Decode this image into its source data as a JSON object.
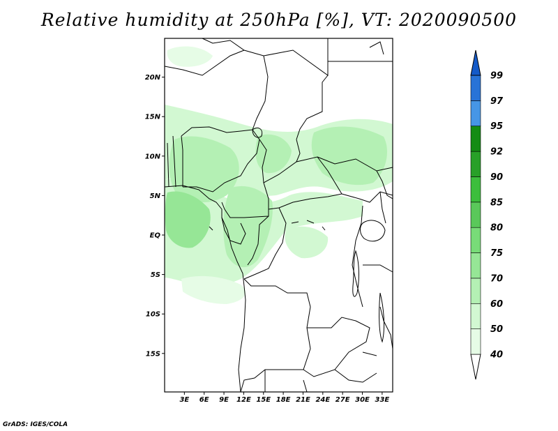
{
  "title": "Relative humidity at 250hPa [%], VT: 2020090500",
  "credit": "GrADS: IGES/COLA",
  "map": {
    "lon_range": [
      0,
      34.6
    ],
    "lat_range": [
      -20,
      25
    ],
    "lon_ticks": [
      "3E",
      "6E",
      "9E",
      "12E",
      "15E",
      "18E",
      "21E",
      "24E",
      "27E",
      "30E",
      "33E"
    ],
    "lat_ticks": [
      "20N",
      "15N",
      "10N",
      "5N",
      "EQ",
      "5S",
      "10S",
      "15S"
    ],
    "background_color": "#ffffff",
    "border_color": "#000000"
  },
  "colorbar": {
    "levels": [
      "40",
      "50",
      "60",
      "70",
      "75",
      "80",
      "85",
      "90",
      "92",
      "95",
      "97",
      "99"
    ],
    "colors": [
      "#e6fce6",
      "#d2f8d2",
      "#b4f0b4",
      "#96e696",
      "#78dc78",
      "#5ac85a",
      "#3cbe3c",
      "#28a028",
      "#148c14",
      "#4696e6",
      "#2873d7",
      "#145ac8"
    ],
    "extend": "both"
  }
}
